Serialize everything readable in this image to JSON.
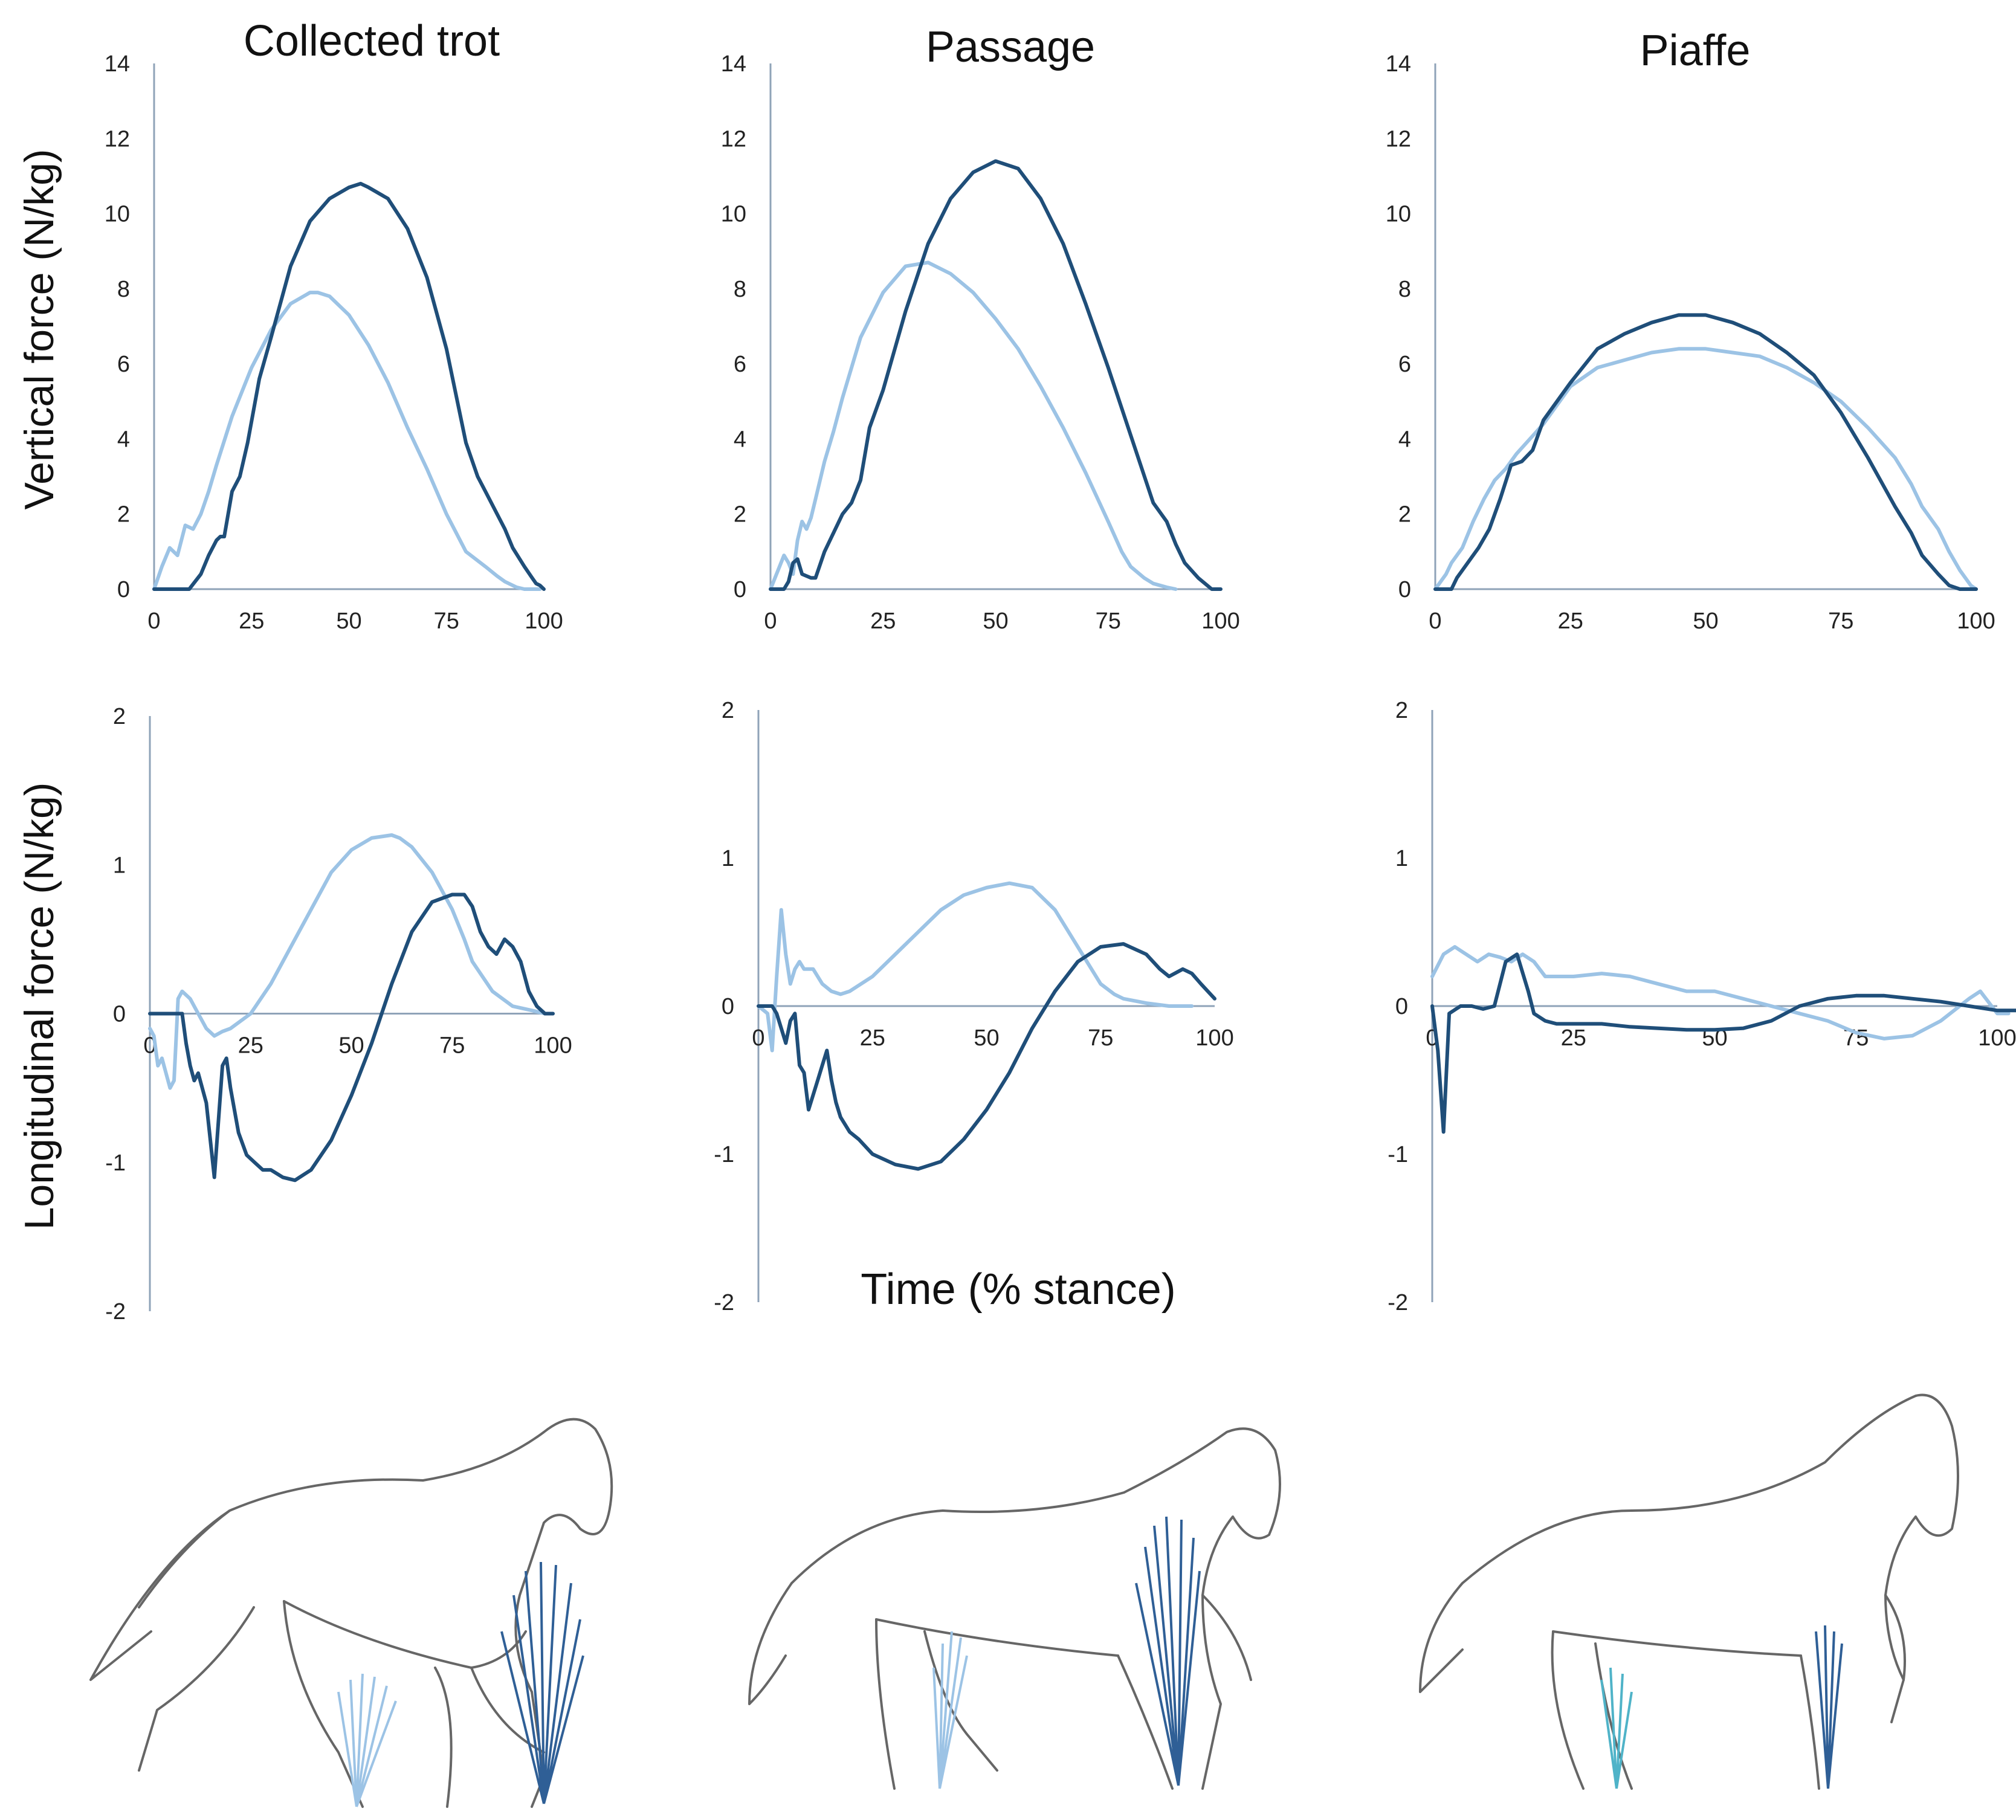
{
  "figure": {
    "column_titles": [
      "Collected trot",
      "Passage",
      "Piaffe"
    ],
    "y_label_vertical": "Vertical force (N/kg)",
    "y_label_longitudinal": "Longitudinal force (N/kg)",
    "x_label": "Time (% stance)"
  },
  "colors": {
    "forelimb_dark": "#1f4e79",
    "hindlimb_light": "#9cc3e5",
    "axis": "#8fa3b8"
  },
  "chart_data": [
    {
      "type": "line",
      "panel": "vertical-collected-trot",
      "title": "Collected trot",
      "xlabel": "",
      "ylabel": "Vertical force (N/kg)",
      "xlim": [
        0,
        100
      ],
      "ylim": [
        0,
        14
      ],
      "xticks": [
        "0",
        "25",
        "50",
        "75",
        "100"
      ],
      "yticks": [
        "0",
        "2",
        "4",
        "6",
        "8",
        "10",
        "12",
        "14"
      ],
      "series": [
        {
          "key": "dark",
          "x": [
            0,
            8,
            9,
            12,
            14,
            16,
            17,
            18,
            20,
            22,
            24,
            27,
            30,
            35,
            40,
            45,
            50,
            53,
            55,
            60,
            65,
            70,
            75,
            80,
            83,
            85,
            88,
            90,
            92,
            95,
            97,
            98,
            99,
            100
          ],
          "y": [
            0,
            0,
            0,
            0.4,
            0.9,
            1.3,
            1.4,
            1.4,
            2.6,
            3.0,
            3.9,
            5.6,
            6.7,
            8.6,
            9.8,
            10.4,
            10.7,
            10.8,
            10.7,
            10.4,
            9.6,
            8.3,
            6.4,
            3.9,
            3.0,
            2.6,
            2.0,
            1.6,
            1.1,
            0.6,
            0.3,
            0.15,
            0.1,
            0
          ]
        },
        {
          "key": "light",
          "x": [
            0,
            2,
            4,
            6,
            8,
            10,
            12,
            14,
            16,
            20,
            25,
            30,
            35,
            40,
            42,
            45,
            50,
            55,
            60,
            65,
            70,
            75,
            80,
            85,
            88,
            90,
            93,
            95,
            97,
            99
          ],
          "y": [
            0,
            0.6,
            1.1,
            0.9,
            1.7,
            1.6,
            2.0,
            2.6,
            3.3,
            4.6,
            5.9,
            6.9,
            7.6,
            7.9,
            7.9,
            7.8,
            7.3,
            6.5,
            5.5,
            4.3,
            3.2,
            2.0,
            1.0,
            0.6,
            0.35,
            0.2,
            0.05,
            0,
            0,
            0
          ]
        }
      ]
    },
    {
      "type": "line",
      "panel": "vertical-passage",
      "title": "Passage",
      "xlabel": "",
      "ylabel": "",
      "xlim": [
        0,
        100
      ],
      "ylim": [
        0,
        14
      ],
      "xticks": [
        "0",
        "25",
        "50",
        "75",
        "100"
      ],
      "yticks": [
        "0",
        "2",
        "4",
        "6",
        "8",
        "10",
        "12",
        "14"
      ],
      "series": [
        {
          "key": "dark",
          "x": [
            0,
            3,
            4,
            5,
            6,
            7,
            9,
            10,
            12,
            14,
            16,
            18,
            20,
            22,
            25,
            30,
            35,
            40,
            45,
            50,
            55,
            60,
            65,
            70,
            75,
            80,
            85,
            88,
            90,
            92,
            95,
            97,
            98,
            99,
            100
          ],
          "y": [
            0,
            0,
            0.2,
            0.7,
            0.8,
            0.4,
            0.3,
            0.3,
            1.0,
            1.5,
            2.0,
            2.3,
            2.9,
            4.3,
            5.3,
            7.4,
            9.2,
            10.4,
            11.1,
            11.4,
            11.2,
            10.4,
            9.2,
            7.6,
            5.9,
            4.1,
            2.3,
            1.8,
            1.2,
            0.7,
            0.3,
            0.1,
            0,
            0,
            0
          ]
        },
        {
          "key": "light",
          "x": [
            0,
            2,
            3,
            4,
            5,
            6,
            7,
            8,
            9,
            10,
            12,
            14,
            16,
            18,
            20,
            25,
            30,
            35,
            40,
            45,
            50,
            55,
            60,
            65,
            70,
            75,
            78,
            80,
            83,
            85,
            88,
            90
          ],
          "y": [
            0,
            0.6,
            0.9,
            0.7,
            0.4,
            1.3,
            1.8,
            1.6,
            1.9,
            2.4,
            3.4,
            4.2,
            5.1,
            5.9,
            6.7,
            7.9,
            8.6,
            8.7,
            8.4,
            7.9,
            7.2,
            6.4,
            5.4,
            4.3,
            3.1,
            1.8,
            1.0,
            0.6,
            0.3,
            0.15,
            0.05,
            0
          ]
        }
      ]
    },
    {
      "type": "line",
      "panel": "vertical-piaffe",
      "title": "Piaffe",
      "xlabel": "",
      "ylabel": "",
      "xlim": [
        0,
        100
      ],
      "ylim": [
        0,
        14
      ],
      "xticks": [
        "0",
        "25",
        "50",
        "75",
        "100"
      ],
      "yticks": [
        "0",
        "2",
        "4",
        "6",
        "8",
        "10",
        "12",
        "14"
      ],
      "series": [
        {
          "key": "dark",
          "x": [
            0,
            3,
            4,
            6,
            8,
            10,
            12,
            14,
            16,
            18,
            20,
            25,
            30,
            35,
            40,
            45,
            50,
            55,
            60,
            65,
            70,
            75,
            80,
            85,
            88,
            90,
            93,
            95,
            97,
            100
          ],
          "y": [
            0,
            0,
            0.3,
            0.7,
            1.1,
            1.6,
            2.4,
            3.3,
            3.4,
            3.7,
            4.5,
            5.5,
            6.4,
            6.8,
            7.1,
            7.3,
            7.3,
            7.1,
            6.8,
            6.3,
            5.7,
            4.7,
            3.5,
            2.2,
            1.5,
            0.9,
            0.4,
            0.1,
            0,
            0
          ]
        },
        {
          "key": "light",
          "x": [
            0,
            2,
            3,
            5,
            7,
            9,
            11,
            13,
            15,
            20,
            25,
            30,
            35,
            40,
            45,
            50,
            55,
            60,
            65,
            70,
            75,
            80,
            85,
            88,
            90,
            93,
            95,
            97,
            99,
            100
          ],
          "y": [
            0,
            0.4,
            0.7,
            1.1,
            1.8,
            2.4,
            2.9,
            3.2,
            3.6,
            4.4,
            5.4,
            5.9,
            6.1,
            6.3,
            6.4,
            6.4,
            6.3,
            6.2,
            5.9,
            5.5,
            5.0,
            4.3,
            3.5,
            2.8,
            2.2,
            1.6,
            1.0,
            0.5,
            0.1,
            0
          ]
        }
      ]
    },
    {
      "type": "line",
      "panel": "longitudinal-collected-trot",
      "title": "",
      "xlabel": "",
      "ylabel": "Longitudinal force (N/kg)",
      "xlim": [
        0,
        100
      ],
      "ylim": [
        -2,
        2
      ],
      "xticks": [
        "0",
        "25",
        "50",
        "75",
        "100"
      ],
      "yticks": [
        "-2",
        "-1",
        "0",
        "1",
        "2"
      ],
      "series": [
        {
          "key": "dark",
          "x": [
            0,
            6,
            8,
            9,
            10,
            11,
            12,
            14,
            16,
            18,
            19,
            20,
            22,
            24,
            26,
            28,
            30,
            33,
            36,
            40,
            45,
            50,
            55,
            60,
            65,
            70,
            75,
            78,
            80,
            82,
            84,
            86,
            88,
            90,
            92,
            94,
            96,
            98,
            100
          ],
          "y": [
            0,
            0,
            0,
            -0.2,
            -0.35,
            -0.45,
            -0.4,
            -0.6,
            -1.1,
            -0.35,
            -0.3,
            -0.5,
            -0.8,
            -0.95,
            -1.0,
            -1.05,
            -1.05,
            -1.1,
            -1.12,
            -1.05,
            -0.85,
            -0.55,
            -0.2,
            0.2,
            0.55,
            0.75,
            0.8,
            0.8,
            0.72,
            0.55,
            0.45,
            0.4,
            0.5,
            0.45,
            0.35,
            0.15,
            0.05,
            0,
            0
          ]
        },
        {
          "key": "light",
          "x": [
            0,
            1,
            2,
            3,
            4,
            5,
            6,
            7,
            8,
            10,
            12,
            14,
            16,
            18,
            20,
            25,
            30,
            35,
            40,
            45,
            50,
            55,
            60,
            62,
            65,
            70,
            75,
            78,
            80,
            85,
            90,
            95,
            98,
            100
          ],
          "y": [
            -0.1,
            -0.15,
            -0.35,
            -0.3,
            -0.4,
            -0.5,
            -0.45,
            0.1,
            0.15,
            0.1,
            0.0,
            -0.1,
            -0.15,
            -0.12,
            -0.1,
            0.0,
            0.2,
            0.45,
            0.7,
            0.95,
            1.1,
            1.18,
            1.2,
            1.18,
            1.12,
            0.95,
            0.7,
            0.5,
            0.35,
            0.15,
            0.05,
            0.02,
            0,
            0
          ]
        }
      ]
    },
    {
      "type": "line",
      "panel": "longitudinal-passage",
      "title": "",
      "xlabel": "Time (% stance)",
      "ylabel": "",
      "xlim": [
        0,
        100
      ],
      "ylim": [
        -2,
        2
      ],
      "xticks": [
        "0",
        "25",
        "50",
        "75",
        "100"
      ],
      "yticks": [
        "-2",
        "-1",
        "0",
        "1",
        "2"
      ],
      "series": [
        {
          "key": "dark",
          "x": [
            0,
            3,
            4,
            5,
            6,
            7,
            8,
            9,
            10,
            11,
            12,
            13,
            14,
            15,
            16,
            17,
            18,
            20,
            22,
            25,
            30,
            35,
            40,
            45,
            50,
            55,
            60,
            65,
            70,
            75,
            80,
            85,
            88,
            90,
            93,
            95,
            97,
            100
          ],
          "y": [
            0,
            0,
            -0.05,
            -0.15,
            -0.25,
            -0.1,
            -0.05,
            -0.4,
            -0.45,
            -0.7,
            -0.6,
            -0.5,
            -0.4,
            -0.3,
            -0.5,
            -0.65,
            -0.75,
            -0.85,
            -0.9,
            -1.0,
            -1.07,
            -1.1,
            -1.05,
            -0.9,
            -0.7,
            -0.45,
            -0.15,
            0.1,
            0.3,
            0.4,
            0.42,
            0.35,
            0.25,
            0.2,
            0.25,
            0.22,
            0.15,
            0.05
          ]
        },
        {
          "key": "light",
          "x": [
            0,
            2,
            3,
            4,
            5,
            6,
            7,
            8,
            9,
            10,
            12,
            14,
            16,
            18,
            20,
            25,
            30,
            35,
            40,
            45,
            50,
            55,
            60,
            65,
            70,
            75,
            78,
            80,
            85,
            90,
            92,
            95
          ],
          "y": [
            0,
            -0.05,
            -0.3,
            0.2,
            0.65,
            0.35,
            0.15,
            0.25,
            0.3,
            0.25,
            0.25,
            0.15,
            0.1,
            0.08,
            0.1,
            0.2,
            0.35,
            0.5,
            0.65,
            0.75,
            0.8,
            0.83,
            0.8,
            0.65,
            0.4,
            0.15,
            0.08,
            0.05,
            0.02,
            0,
            0,
            0
          ]
        }
      ]
    },
    {
      "type": "line",
      "panel": "longitudinal-piaffe",
      "title": "",
      "xlabel": "",
      "ylabel": "",
      "xlim": [
        0,
        100
      ],
      "ylim": [
        -2,
        2
      ],
      "xticks": [
        "0",
        "25",
        "50",
        "75",
        "100"
      ],
      "yticks": [
        "-2",
        "-1",
        "0",
        "1",
        "2"
      ],
      "series": [
        {
          "key": "dark",
          "x": [
            0,
            1,
            2,
            3,
            5,
            7,
            9,
            11,
            13,
            15,
            17,
            18,
            20,
            22,
            25,
            30,
            35,
            40,
            45,
            50,
            55,
            60,
            65,
            70,
            75,
            80,
            85,
            90,
            95,
            100,
            104
          ],
          "y": [
            0,
            -0.3,
            -0.85,
            -0.05,
            0,
            0,
            -0.02,
            0,
            0.3,
            0.35,
            0.1,
            -0.05,
            -0.1,
            -0.12,
            -0.12,
            -0.12,
            -0.14,
            -0.15,
            -0.16,
            -0.16,
            -0.15,
            -0.1,
            0,
            0.05,
            0.07,
            0.07,
            0.05,
            0.03,
            0.0,
            -0.03,
            -0.03
          ]
        },
        {
          "key": "light",
          "x": [
            0,
            2,
            4,
            6,
            8,
            10,
            12,
            14,
            16,
            18,
            20,
            25,
            30,
            35,
            40,
            45,
            50,
            55,
            60,
            65,
            70,
            75,
            80,
            85,
            90,
            95,
            97,
            98,
            100,
            102
          ],
          "y": [
            0.2,
            0.35,
            0.4,
            0.35,
            0.3,
            0.35,
            0.33,
            0.3,
            0.35,
            0.3,
            0.2,
            0.2,
            0.22,
            0.2,
            0.15,
            0.1,
            0.1,
            0.05,
            0.0,
            -0.05,
            -0.1,
            -0.18,
            -0.22,
            -0.2,
            -0.1,
            0.05,
            0.1,
            0.05,
            -0.05,
            -0.05
          ]
        }
      ]
    }
  ]
}
